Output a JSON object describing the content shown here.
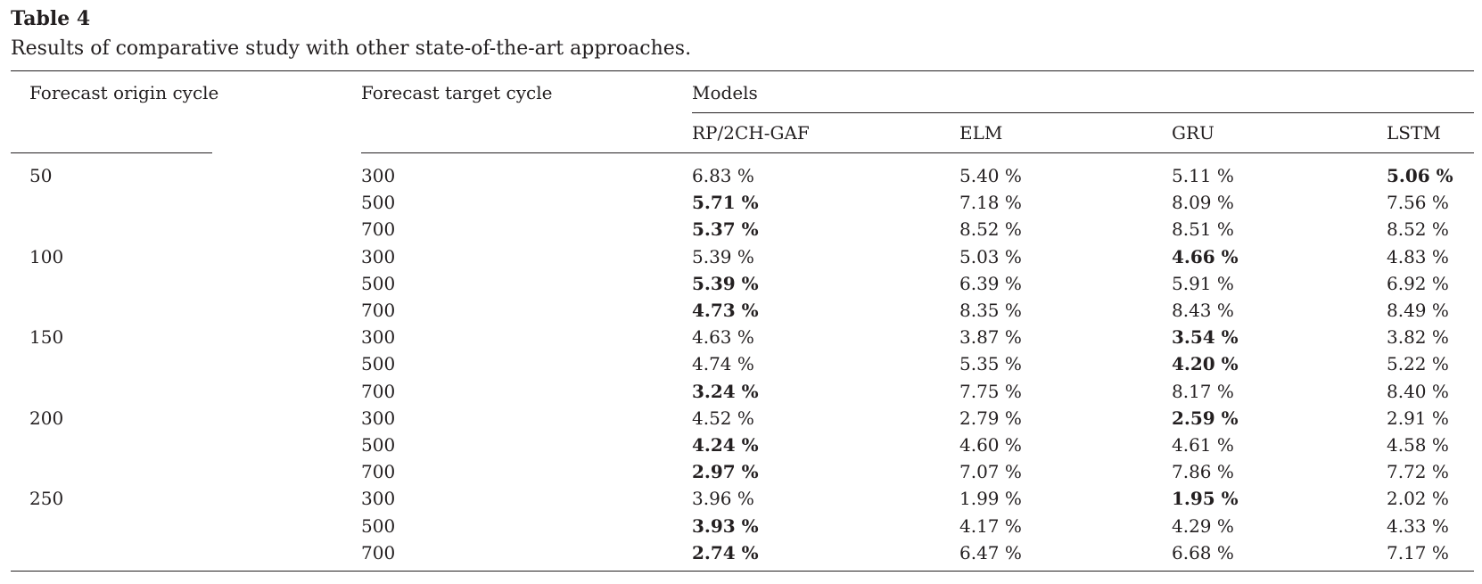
{
  "table": {
    "label": "Table 4",
    "caption": "Results of comparative study with other state-of-the-art approaches.",
    "headers": {
      "origin": "Forecast origin cycle",
      "target": "Forecast target cycle",
      "group": "Models",
      "models": [
        "RP/2CH-GAF",
        "ELM",
        "GRU",
        "LSTM"
      ]
    },
    "rows": [
      {
        "origin": "50",
        "target": "300",
        "values": [
          "6.83 %",
          "5.40 %",
          "5.11 %",
          "5.06 %"
        ],
        "best": 3
      },
      {
        "origin": "",
        "target": "500",
        "values": [
          "5.71 %",
          "7.18 %",
          "8.09 %",
          "7.56 %"
        ],
        "best": 0
      },
      {
        "origin": "",
        "target": "700",
        "values": [
          "5.37 %",
          "8.52 %",
          "8.51 %",
          "8.52 %"
        ],
        "best": 0
      },
      {
        "origin": "100",
        "target": "300",
        "values": [
          "5.39 %",
          "5.03 %",
          "4.66 %",
          "4.83 %"
        ],
        "best": 2
      },
      {
        "origin": "",
        "target": "500",
        "values": [
          "5.39 %",
          "6.39 %",
          "5.91 %",
          "6.92 %"
        ],
        "best": 0
      },
      {
        "origin": "",
        "target": "700",
        "values": [
          "4.73 %",
          "8.35 %",
          "8.43 %",
          "8.49 %"
        ],
        "best": 0
      },
      {
        "origin": "150",
        "target": "300",
        "values": [
          "4.63 %",
          "3.87 %",
          "3.54 %",
          "3.82 %"
        ],
        "best": 2
      },
      {
        "origin": "",
        "target": "500",
        "values": [
          "4.74 %",
          "5.35 %",
          "4.20 %",
          "5.22 %"
        ],
        "best": 2
      },
      {
        "origin": "",
        "target": "700",
        "values": [
          "3.24 %",
          "7.75 %",
          "8.17 %",
          "8.40 %"
        ],
        "best": 0
      },
      {
        "origin": "200",
        "target": "300",
        "values": [
          "4.52 %",
          "2.79 %",
          "2.59 %",
          "2.91 %"
        ],
        "best": 2
      },
      {
        "origin": "",
        "target": "500",
        "values": [
          "4.24 %",
          "4.60 %",
          "4.61 %",
          "4.58 %"
        ],
        "best": 0
      },
      {
        "origin": "",
        "target": "700",
        "values": [
          "2.97 %",
          "7.07 %",
          "7.86 %",
          "7.72 %"
        ],
        "best": 0
      },
      {
        "origin": "250",
        "target": "300",
        "values": [
          "3.96 %",
          "1.99 %",
          "1.95 %",
          "2.02 %"
        ],
        "best": 2
      },
      {
        "origin": "",
        "target": "500",
        "values": [
          "3.93 %",
          "4.17 %",
          "4.29 %",
          "4.33 %"
        ],
        "best": 0
      },
      {
        "origin": "",
        "target": "700",
        "values": [
          "2.74 %",
          "6.47 %",
          "6.68 %",
          "7.17 %"
        ],
        "best": 0
      }
    ]
  }
}
